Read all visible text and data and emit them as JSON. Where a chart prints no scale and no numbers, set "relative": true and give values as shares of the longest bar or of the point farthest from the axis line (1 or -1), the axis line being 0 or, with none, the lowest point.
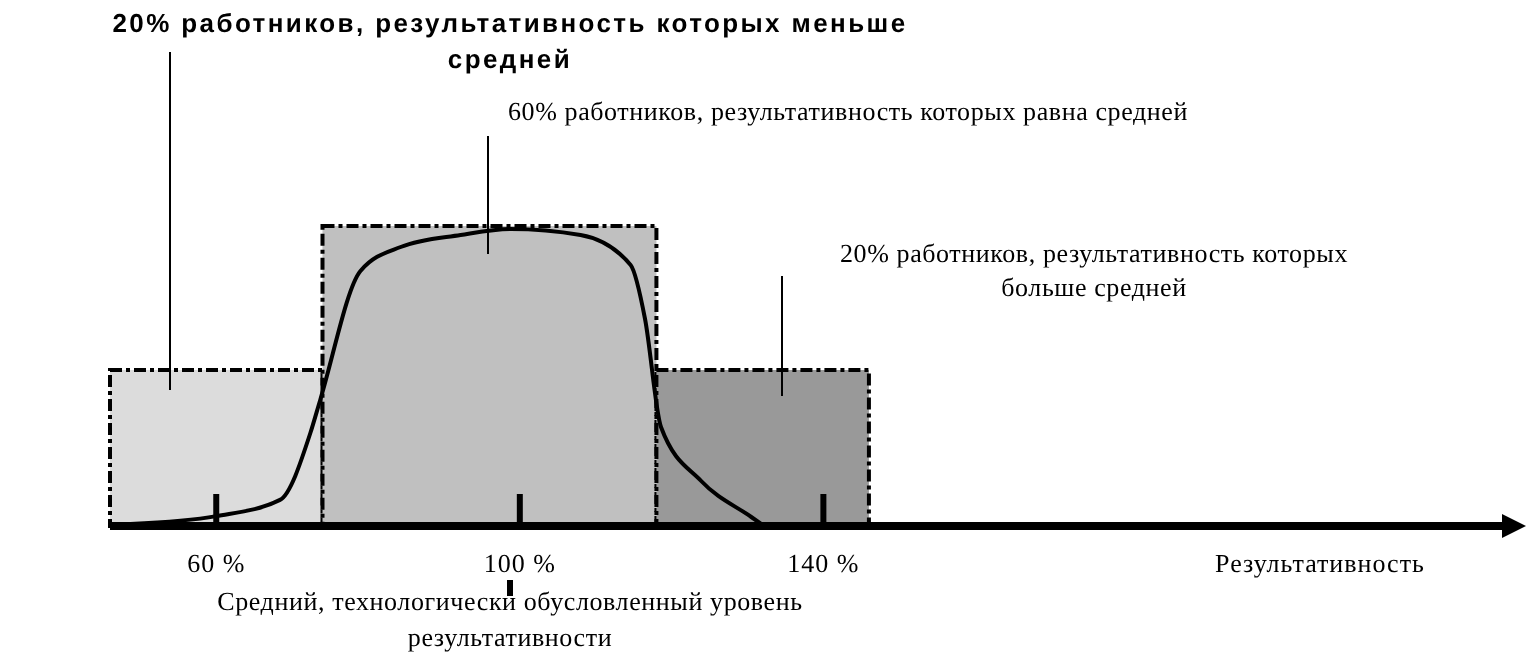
{
  "chart_data": {
    "type": "histogram",
    "relative": true,
    "bins": [
      46,
      74,
      118,
      146
    ],
    "xlim": [
      46,
      231
    ],
    "xticks": [
      {
        "value": 60,
        "label": "60 %"
      },
      {
        "value": 100,
        "label": "100 %"
      },
      {
        "value": 140,
        "label": "140 %"
      }
    ],
    "xlabel": "Результативность",
    "annotations": [
      "20% работников, результативность которых меньше средней",
      "60% работников, результативность которых равна средней",
      "20% работников, результативность которых больше средней",
      "Средний, технологически обусловленный уровень результативности"
    ],
    "series": [
      {
        "values": [
          0.52,
          1,
          0.52
        ],
        "colors": [
          "#dcdcdc",
          "#c0c0c0",
          "#999999"
        ]
      },
      {
        "type": "line",
        "color": "#000000",
        "x": [
          48.7,
          60,
          68.4,
          72.4,
          73.7,
          79,
          84.3,
          92.2,
          98.8,
          108,
          114.6,
          116.5,
          118.6,
          123.9,
          130.5,
          131.8
        ],
        "values": [
          0.007,
          0.033,
          0.087,
          0.31,
          0.42,
          0.85,
          0.93,
          0.97,
          0.99,
          0.97,
          0.87,
          0.69,
          0.33,
          0.15,
          0.03,
          0.007
        ]
      }
    ]
  }
}
